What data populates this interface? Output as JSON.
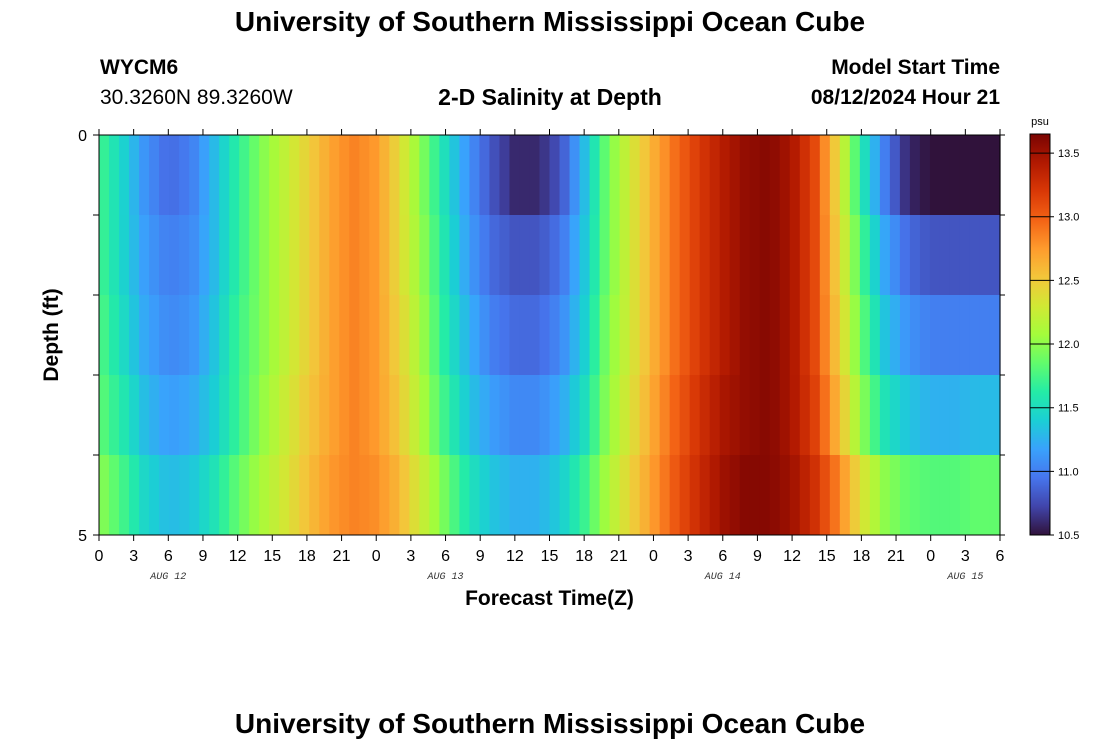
{
  "header": {
    "title": "University of Southern Mississippi Ocean Cube",
    "station_id": "WYCM6",
    "coordinates": "30.3260N  89.3260W",
    "plot_title": "2-D Salinity at Depth",
    "model_start_label": "Model Start Time",
    "model_start_value": "08/12/2024 Hour 21"
  },
  "footer": {
    "title": "University of Southern Mississippi Ocean Cube"
  },
  "chart_data": {
    "type": "heatmap",
    "title": "2-D Salinity at Depth",
    "xlabel": "Forecast Time(Z)",
    "ylabel": "Depth (ft)",
    "x_tick_labels": [
      "0",
      "3",
      "6",
      "9",
      "12",
      "15",
      "18",
      "21",
      "0",
      "3",
      "6",
      "9",
      "12",
      "15",
      "18",
      "21",
      "0",
      "3",
      "6",
      "9",
      "12",
      "15",
      "18",
      "21",
      "0",
      "3",
      "6"
    ],
    "date_labels": [
      "AUG 12",
      "AUG 13",
      "AUG 14",
      "AUG 15"
    ],
    "x_hours": [
      0,
      78
    ],
    "y_tick_labels": [
      "0",
      "5"
    ],
    "y_range": [
      0,
      5
    ],
    "depth_rows": [
      0.5,
      1.5,
      2.5,
      3.5,
      4.5
    ],
    "colorbar": {
      "unit": "psu",
      "range": [
        10.5,
        13.65
      ],
      "tick_labels": [
        "13.5",
        "13.0",
        "12.5",
        "12.0",
        "11.5",
        "11.0",
        "10.5"
      ],
      "tick_values": [
        13.5,
        13.0,
        12.5,
        12.0,
        11.5,
        11.0,
        10.5
      ],
      "colormap_stops": [
        "#30123b",
        "#4145ab",
        "#4675ed",
        "#39a2fc",
        "#1bcfd4",
        "#24eca6",
        "#61fc6c",
        "#a4fc3b",
        "#d1e834",
        "#f3c63a",
        "#fe9b2d",
        "#f36315",
        "#d93806",
        "#b11901",
        "#7a0402"
      ]
    },
    "series": [
      {
        "time_hours": [
          0,
          2,
          4,
          6,
          8,
          10,
          12,
          14,
          16,
          18,
          20,
          22,
          24,
          26,
          28,
          30,
          32,
          34,
          36,
          38,
          40,
          42,
          44,
          46,
          48,
          50,
          52,
          54,
          56,
          58,
          60,
          62,
          64,
          66,
          68,
          70,
          72,
          74,
          76,
          78
        ],
        "depth_ft": 0.5,
        "salinity": [
          11.75,
          11.45,
          11.1,
          10.9,
          11.0,
          11.3,
          11.65,
          11.95,
          12.2,
          12.45,
          12.7,
          12.85,
          12.75,
          12.4,
          11.95,
          11.5,
          11.1,
          10.8,
          10.6,
          10.6,
          10.8,
          11.3,
          11.9,
          12.3,
          12.65,
          12.95,
          13.2,
          13.4,
          13.55,
          13.6,
          13.45,
          13.1,
          12.4,
          11.6,
          11.0,
          10.6,
          10.5,
          10.5,
          10.5,
          10.5
        ]
      },
      {
        "time_hours": [
          0,
          2,
          4,
          6,
          8,
          10,
          12,
          14,
          16,
          18,
          20,
          22,
          24,
          26,
          28,
          30,
          32,
          34,
          36,
          38,
          40,
          42,
          44,
          46,
          48,
          50,
          52,
          54,
          56,
          58,
          60,
          62,
          64,
          66,
          68,
          70,
          72,
          74,
          76,
          78
        ],
        "depth_ft": 1.5,
        "salinity": [
          11.75,
          11.45,
          11.15,
          11.0,
          11.05,
          11.3,
          11.65,
          11.95,
          12.2,
          12.45,
          12.7,
          12.85,
          12.75,
          12.4,
          12.0,
          11.55,
          11.15,
          10.9,
          10.8,
          10.8,
          10.95,
          11.35,
          11.9,
          12.3,
          12.65,
          12.95,
          13.2,
          13.4,
          13.55,
          13.6,
          13.45,
          13.1,
          12.45,
          11.75,
          11.2,
          10.9,
          10.8,
          10.8,
          10.8,
          10.8
        ]
      },
      {
        "time_hours": [
          0,
          2,
          4,
          6,
          8,
          10,
          12,
          14,
          16,
          18,
          20,
          22,
          24,
          26,
          28,
          30,
          32,
          34,
          36,
          38,
          40,
          42,
          44,
          46,
          48,
          50,
          52,
          54,
          56,
          58,
          60,
          62,
          64,
          66,
          68,
          70,
          72,
          74,
          76,
          78
        ],
        "depth_ft": 2.5,
        "salinity": [
          11.8,
          11.5,
          11.2,
          11.05,
          11.1,
          11.35,
          11.7,
          11.95,
          12.2,
          12.45,
          12.7,
          12.85,
          12.75,
          12.45,
          12.05,
          11.6,
          11.25,
          11.0,
          10.9,
          10.9,
          11.05,
          11.4,
          11.95,
          12.3,
          12.65,
          12.95,
          13.2,
          13.4,
          13.55,
          13.6,
          13.45,
          13.1,
          12.5,
          11.85,
          11.35,
          11.1,
          11.0,
          11.0,
          11.0,
          11.0
        ]
      },
      {
        "time_hours": [
          0,
          2,
          4,
          6,
          8,
          10,
          12,
          14,
          16,
          18,
          20,
          22,
          24,
          26,
          28,
          30,
          32,
          34,
          36,
          38,
          40,
          42,
          44,
          46,
          48,
          50,
          52,
          54,
          56,
          58,
          60,
          62,
          64,
          66,
          68,
          70,
          72,
          74,
          76,
          78
        ],
        "depth_ft": 3.5,
        "salinity": [
          11.85,
          11.6,
          11.3,
          11.15,
          11.2,
          11.4,
          11.7,
          12.0,
          12.25,
          12.5,
          12.7,
          12.85,
          12.75,
          12.5,
          12.1,
          11.7,
          11.35,
          11.15,
          11.05,
          11.05,
          11.2,
          11.5,
          12.0,
          12.35,
          12.7,
          13.0,
          13.25,
          13.45,
          13.55,
          13.6,
          13.45,
          13.15,
          12.6,
          12.0,
          11.55,
          11.35,
          11.25,
          11.25,
          11.3,
          11.3
        ]
      },
      {
        "time_hours": [
          0,
          2,
          4,
          6,
          8,
          10,
          12,
          14,
          16,
          18,
          20,
          22,
          24,
          26,
          28,
          30,
          32,
          34,
          36,
          38,
          40,
          42,
          44,
          46,
          48,
          50,
          52,
          54,
          56,
          58,
          60,
          62,
          64,
          66,
          68,
          70,
          72,
          74,
          76,
          78
        ],
        "depth_ft": 4.5,
        "salinity": [
          12.0,
          11.75,
          11.45,
          11.3,
          11.35,
          11.55,
          11.85,
          12.1,
          12.3,
          12.55,
          12.75,
          12.85,
          12.8,
          12.6,
          12.25,
          11.9,
          11.55,
          11.35,
          11.25,
          11.25,
          11.4,
          11.7,
          12.1,
          12.45,
          12.75,
          13.05,
          13.3,
          13.5,
          13.6,
          13.6,
          13.5,
          13.25,
          12.85,
          12.35,
          12.0,
          11.85,
          11.8,
          11.8,
          11.85,
          11.85
        ]
      }
    ]
  }
}
